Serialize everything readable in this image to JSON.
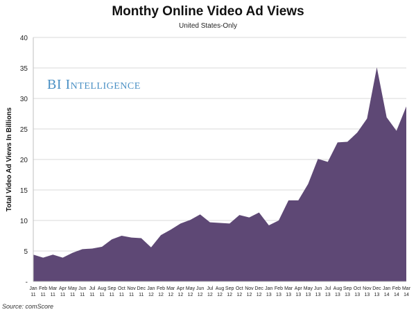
{
  "title": "Monthy Online Video Ad Views",
  "subtitle": "United States-Only",
  "watermark": "BI Intelligence",
  "source": "Source: comScore",
  "colors": {
    "area": "#5e4875",
    "grid": "#d9d9d9",
    "axis": "#bfbfbf",
    "watermark": "#4a90c4"
  },
  "chart_data": {
    "type": "area",
    "ylabel": "Total Video Ad Views In Billions",
    "xlabel": "",
    "ylim": [
      0,
      40
    ],
    "yticks": [
      "-",
      "5",
      "10",
      "15",
      "20",
      "25",
      "30",
      "35",
      "40"
    ],
    "grid": true,
    "legend": "none",
    "categories": [
      [
        "Jan",
        "11"
      ],
      [
        "Feb",
        "11"
      ],
      [
        "Mar",
        "11"
      ],
      [
        "Apr",
        "11"
      ],
      [
        "May",
        "11"
      ],
      [
        "Jun",
        "11"
      ],
      [
        "Jul",
        "11"
      ],
      [
        "Aug",
        "11"
      ],
      [
        "Sep",
        "11"
      ],
      [
        "Oct",
        "11"
      ],
      [
        "Nov",
        "11"
      ],
      [
        "Dec",
        "11"
      ],
      [
        "Jan",
        "12"
      ],
      [
        "Feb",
        "12"
      ],
      [
        "Mar",
        "12"
      ],
      [
        "Apr",
        "12"
      ],
      [
        "May",
        "12"
      ],
      [
        "Jun",
        "12"
      ],
      [
        "Jul",
        "12"
      ],
      [
        "Aug",
        "12"
      ],
      [
        "Sep",
        "12"
      ],
      [
        "Oct",
        "12"
      ],
      [
        "Nov",
        "12"
      ],
      [
        "Dec",
        "12"
      ],
      [
        "Jan",
        "13"
      ],
      [
        "Feb",
        "13"
      ],
      [
        "Mar",
        "13"
      ],
      [
        "Apr",
        "13"
      ],
      [
        "May",
        "13"
      ],
      [
        "Jun",
        "13"
      ],
      [
        "Jul",
        "13"
      ],
      [
        "Aug",
        "13"
      ],
      [
        "Sep",
        "13"
      ],
      [
        "Oct",
        "13"
      ],
      [
        "Nov",
        "13"
      ],
      [
        "Dec",
        "13"
      ],
      [
        "Jan",
        "14"
      ],
      [
        "Feb",
        "14"
      ],
      [
        "Mar",
        "14"
      ]
    ],
    "values": [
      4.4,
      3.9,
      4.4,
      3.9,
      4.7,
      5.3,
      5.4,
      5.7,
      6.9,
      7.5,
      7.2,
      7.1,
      5.6,
      7.6,
      8.5,
      9.5,
      10.1,
      11.0,
      9.7,
      9.6,
      9.5,
      10.9,
      10.5,
      11.3,
      9.2,
      10.0,
      13.3,
      13.3,
      16.0,
      20.1,
      19.6,
      22.8,
      22.9,
      24.4,
      26.7,
      35.1,
      26.9,
      24.7,
      28.7
    ]
  }
}
